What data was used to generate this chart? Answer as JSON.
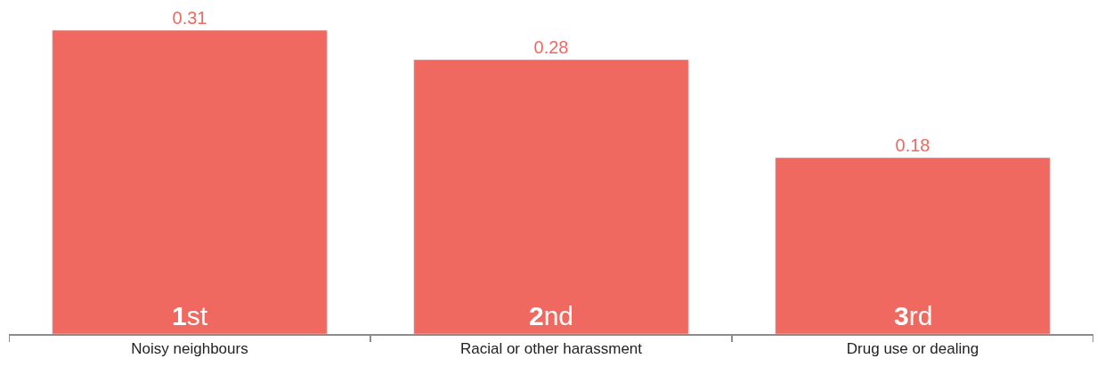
{
  "chart_data": {
    "type": "bar",
    "categories": [
      "Noisy neighbours",
      "Racial or other harassment",
      "Drug use or dealing"
    ],
    "values": [
      0.31,
      0.28,
      0.18
    ],
    "color": "#f06960",
    "tick_labels": "x",
    "data_labels": true,
    "annotations": [
      {
        "text": "1st",
        "x": "Noisy neighbours",
        "y": 0
      },
      {
        "text": "2nd",
        "x": "Racial or other harassment",
        "y": 0
      },
      {
        "text": "3rd",
        "x": "Drug use or dealing",
        "y": 0
      }
    ]
  }
}
